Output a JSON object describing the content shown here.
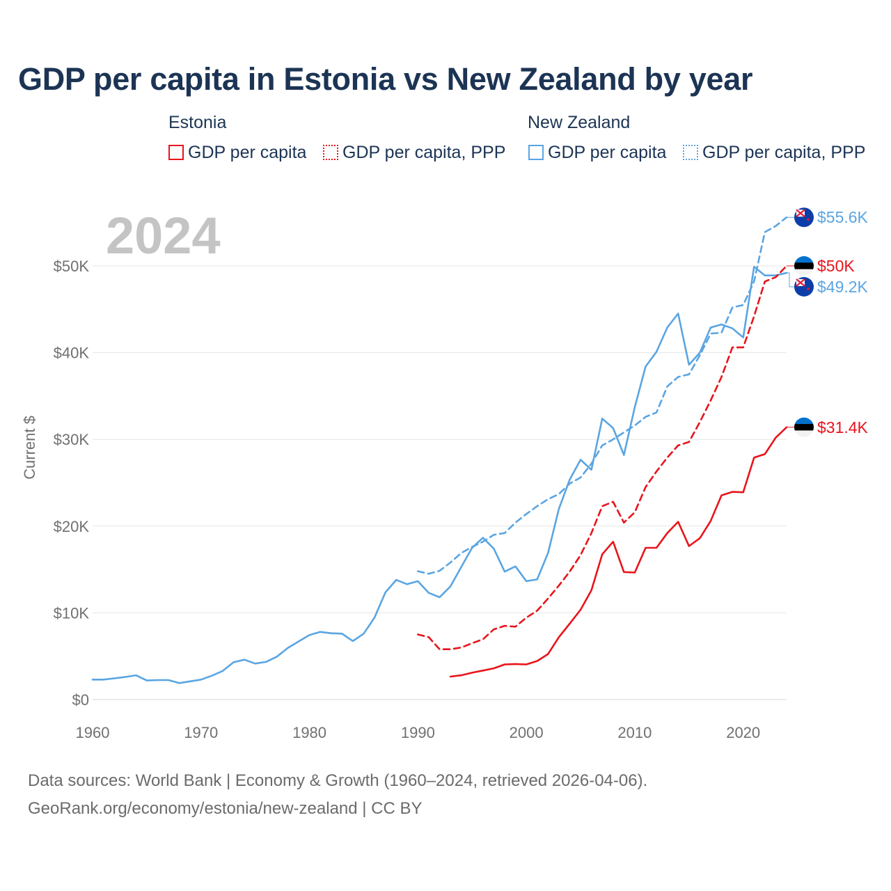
{
  "title": "GDP per capita in Estonia vs New Zealand by year",
  "legend": {
    "groups": [
      {
        "country": "Estonia",
        "items": [
          {
            "label": "GDP per capita",
            "style": "solid",
            "color": "#e8141b"
          },
          {
            "label": "GDP per capita, PPP",
            "style": "dotted",
            "color": "#e8141b"
          }
        ]
      },
      {
        "country": "New Zealand",
        "items": [
          {
            "label": "GDP per capita",
            "style": "solid",
            "color": "#5aa5e2"
          },
          {
            "label": "GDP per capita, PPP",
            "style": "dotted",
            "color": "#5aa5e2"
          }
        ]
      }
    ]
  },
  "year_display": "2024",
  "source": {
    "line1": "Data sources: World Bank | Economy & Growth (1960–2024, retrieved 2026-04-06).",
    "line2": "GeoRank.org/economy/estonia/new-zealand | CC BY"
  },
  "chart_data": {
    "type": "line",
    "title": "GDP per capita in Estonia vs New Zealand by year",
    "xlabel": "",
    "ylabel": "Current $",
    "xlim": [
      1960,
      2024
    ],
    "ylim": [
      0,
      50000
    ],
    "x_ticks": [
      1960,
      1970,
      1980,
      1990,
      2000,
      2010,
      2020
    ],
    "y_ticks": [
      {
        "value": 0,
        "label": "$0"
      },
      {
        "value": 10000,
        "label": "$10K"
      },
      {
        "value": 20000,
        "label": "$20K"
      },
      {
        "value": 30000,
        "label": "$30K"
      },
      {
        "value": 40000,
        "label": "$40K"
      },
      {
        "value": 50000,
        "label": "$50K"
      }
    ],
    "grid": true,
    "series": [
      {
        "name": "New Zealand GDP per capita",
        "color": "#5aa5e2",
        "dash": "solid",
        "end_label": "$49.2K",
        "flag": "new-zealand-flag-icon",
        "x": [
          1960,
          1961,
          1962,
          1963,
          1964,
          1965,
          1966,
          1967,
          1968,
          1969,
          1970,
          1971,
          1972,
          1973,
          1974,
          1975,
          1976,
          1977,
          1978,
          1979,
          1980,
          1981,
          1982,
          1983,
          1984,
          1985,
          1986,
          1987,
          1988,
          1989,
          1990,
          1991,
          1992,
          1993,
          1994,
          1995,
          1996,
          1997,
          1998,
          1999,
          2000,
          2001,
          2002,
          2003,
          2004,
          2005,
          2006,
          2007,
          2008,
          2009,
          2010,
          2011,
          2012,
          2013,
          2014,
          2015,
          2016,
          2017,
          2018,
          2019,
          2020,
          2021,
          2022,
          2023,
          2024
        ],
        "values": [
          2300,
          2300,
          2450,
          2600,
          2800,
          2200,
          2250,
          2250,
          1900,
          2100,
          2300,
          2750,
          3300,
          4300,
          4600,
          4150,
          4350,
          4950,
          5950,
          6700,
          7450,
          7800,
          7650,
          7600,
          6750,
          7600,
          9450,
          12350,
          13800,
          13300,
          13650,
          12300,
          11800,
          13050,
          15300,
          17500,
          18650,
          17400,
          14750,
          15350,
          13650,
          13850,
          16900,
          22000,
          25350,
          27650,
          26500,
          32400,
          31300,
          28200,
          33700,
          38400,
          40100,
          42900,
          44500,
          38600,
          40000,
          42900,
          43250,
          42800,
          41750,
          49900,
          48900,
          48900,
          49200
        ]
      },
      {
        "name": "New Zealand GDP per capita, PPP",
        "color": "#5aa5e2",
        "dash": "dashed",
        "end_label": "$55.6K",
        "flag": "new-zealand-flag-icon",
        "x": [
          1990,
          1991,
          1992,
          1993,
          1994,
          1995,
          1996,
          1997,
          1998,
          1999,
          2000,
          2001,
          2002,
          2003,
          2004,
          2005,
          2006,
          2007,
          2008,
          2009,
          2010,
          2011,
          2012,
          2013,
          2014,
          2015,
          2016,
          2017,
          2018,
          2019,
          2020,
          2021,
          2022,
          2023,
          2024
        ],
        "values": [
          14800,
          14500,
          14850,
          15800,
          16900,
          17600,
          18200,
          19000,
          19200,
          20400,
          21400,
          22300,
          23100,
          23700,
          24900,
          25600,
          27200,
          29300,
          30000,
          30800,
          31600,
          32600,
          33100,
          36100,
          37200,
          37500,
          39700,
          42200,
          42300,
          45200,
          45500,
          48200,
          53900,
          54600,
          55600
        ]
      },
      {
        "name": "Estonia GDP per capita",
        "color": "#e8141b",
        "dash": "solid",
        "end_label": "$31.4K",
        "flag": "estonia-flag-icon",
        "x": [
          1993,
          1994,
          1995,
          1996,
          1997,
          1998,
          1999,
          2000,
          2001,
          2002,
          2003,
          2004,
          2005,
          2006,
          2007,
          2008,
          2009,
          2010,
          2011,
          2012,
          2013,
          2014,
          2015,
          2016,
          2017,
          2018,
          2019,
          2020,
          2021,
          2022,
          2023,
          2024
        ],
        "values": [
          2650,
          2800,
          3100,
          3350,
          3600,
          4050,
          4100,
          4050,
          4450,
          5250,
          7200,
          8750,
          10350,
          12600,
          16750,
          18200,
          14700,
          14650,
          17500,
          17500,
          19200,
          20500,
          17700,
          18600,
          20600,
          23550,
          23950,
          23900,
          27900,
          28300,
          30200,
          31400
        ]
      },
      {
        "name": "Estonia GDP per capita, PPP",
        "color": "#e8141b",
        "dash": "dashed",
        "end_label": "$50K",
        "flag": "estonia-flag-icon",
        "x": [
          1990,
          1991,
          1992,
          1993,
          1994,
          1995,
          1996,
          1997,
          1998,
          1999,
          2000,
          2001,
          2002,
          2003,
          2004,
          2005,
          2006,
          2007,
          2008,
          2009,
          2010,
          2011,
          2012,
          2013,
          2014,
          2015,
          2016,
          2017,
          2018,
          2019,
          2020,
          2021,
          2022,
          2023,
          2024
        ],
        "values": [
          7500,
          7200,
          5800,
          5800,
          6000,
          6500,
          6950,
          8100,
          8500,
          8400,
          9450,
          10250,
          11650,
          13150,
          14750,
          16650,
          19200,
          22300,
          22800,
          20400,
          21600,
          24500,
          26300,
          27900,
          29300,
          29700,
          32000,
          34500,
          37200,
          40600,
          40600,
          44200,
          48200,
          48700,
          50000
        ]
      }
    ]
  }
}
